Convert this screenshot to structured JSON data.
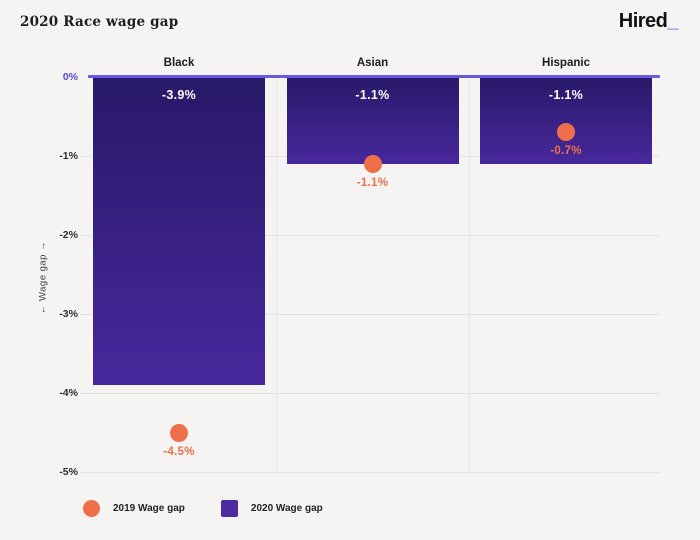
{
  "header": {
    "title": "2020 Race wage gap",
    "logo_text": "Hired",
    "logo_underscore": "_"
  },
  "chart_data": {
    "type": "bar",
    "title": "2020 Race wage gap",
    "categories": [
      "Black",
      "Asian",
      "Hispanic"
    ],
    "series": [
      {
        "name": "2020 Wage gap",
        "type": "bar",
        "values": [
          -3.9,
          -1.1,
          -1.1
        ],
        "labels": [
          "-3.9%",
          "-1.1%",
          "-1.1%"
        ],
        "color_top": "#281968",
        "color_bottom": "#47289c"
      },
      {
        "name": "2019 Wage gap",
        "type": "point",
        "values": [
          -4.5,
          -1.1,
          -0.7
        ],
        "labels": [
          "-4.5%",
          "-1.1%",
          "-0.7%"
        ],
        "color": "#ef6f4b"
      }
    ],
    "ylabel": "← Wage gap →",
    "ylim": [
      -5,
      0
    ],
    "yticks": [
      {
        "label": "0%",
        "value": 0
      },
      {
        "label": "-1%",
        "value": -1
      },
      {
        "label": "-2%",
        "value": -2
      },
      {
        "label": "-3%",
        "value": -3
      },
      {
        "label": "-4%",
        "value": -4
      },
      {
        "label": "-5%",
        "value": -5
      }
    ],
    "grid": true,
    "legend_position": "bottom-left"
  },
  "legend": {
    "items": [
      {
        "label": "2019 Wage gap",
        "swatch": "circle",
        "color": "#ef6f4b"
      },
      {
        "label": "2020 Wage gap",
        "swatch": "square",
        "color": "#4c2aa0"
      }
    ]
  },
  "colors": {
    "background": "#f5f4f2",
    "axis_line": "#6a58e0",
    "zero_tick_label": "#5b48d6",
    "gridline": "#e3e1de",
    "bar_gradient_top": "#281968",
    "bar_gradient_bottom": "#47289c",
    "point": "#ef6f4b",
    "bar_value_label": "#ffffff",
    "text": "#1c1c1c"
  }
}
